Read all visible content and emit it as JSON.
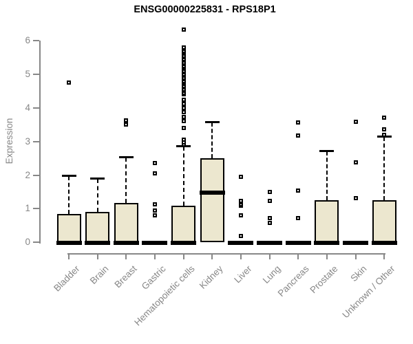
{
  "chart_data": {
    "type": "boxplot",
    "title": "ENSG00000225831 - RPS18P1",
    "ylabel": "Expression",
    "xlabel": "",
    "ylim": [
      0,
      6
    ],
    "yticks": [
      0,
      1,
      2,
      3,
      4,
      5,
      6
    ],
    "grid": false,
    "legend": "none",
    "box_fill": "#ece7cf",
    "box_border": "#000000",
    "median_color": "#000000",
    "axis_color": "#878787",
    "categories": [
      "Bladder",
      "Brain",
      "Breast",
      "Gastric",
      "Hematopoietic cells",
      "Kidney",
      "Liver",
      "Lung",
      "Pancreas",
      "Prostate",
      "Skin",
      "Unknown / Other"
    ],
    "series": [
      {
        "category": "Bladder",
        "q1": 0,
        "median": 0,
        "q3": 0.85,
        "whisker_low": 0,
        "whisker_high": 2.0,
        "outliers": [
          4.75
        ]
      },
      {
        "category": "Brain",
        "q1": 0,
        "median": 0,
        "q3": 0.9,
        "whisker_low": 0,
        "whisker_high": 1.9,
        "outliers": []
      },
      {
        "category": "Breast",
        "q1": 0,
        "median": 0,
        "q3": 1.18,
        "whisker_low": 0,
        "whisker_high": 2.55,
        "outliers": [
          3.5,
          3.62
        ]
      },
      {
        "category": "Gastric",
        "q1": 0,
        "median": 0,
        "q3": 0,
        "whisker_low": 0,
        "whisker_high": 0,
        "outliers": [
          0.81,
          0.95,
          1.14,
          2.05,
          2.35
        ]
      },
      {
        "category": "Hematopoietic cells",
        "q1": 0,
        "median": 0,
        "q3": 1.1,
        "whisker_low": 0,
        "whisker_high": 2.87,
        "outliers": [
          2.92,
          2.98,
          3.05,
          3.4,
          3.6,
          3.73,
          3.87,
          4.0,
          4.12,
          4.24,
          4.4,
          4.45,
          4.5,
          4.55,
          4.6,
          4.65,
          4.7,
          4.75,
          4.8,
          4.85,
          4.9,
          4.95,
          5.0,
          5.05,
          5.1,
          5.15,
          5.2,
          5.25,
          5.3,
          5.35,
          5.4,
          5.45,
          5.5,
          5.55,
          5.6,
          5.65,
          5.7,
          5.75,
          5.8,
          6.33
        ]
      },
      {
        "category": "Kidney",
        "q1": 0,
        "median": 1.5,
        "q3": 2.5,
        "whisker_low": 0,
        "whisker_high": 3.58,
        "outliers": []
      },
      {
        "category": "Liver",
        "q1": 0,
        "median": 0,
        "q3": 0,
        "whisker_low": 0,
        "whisker_high": 0,
        "outliers": [
          0.18,
          0.8,
          1.1,
          1.14,
          1.19,
          1.24,
          1.95
        ]
      },
      {
        "category": "Lung",
        "q1": 0,
        "median": 0,
        "q3": 0,
        "whisker_low": 0,
        "whisker_high": 0,
        "outliers": [
          0.57,
          0.72,
          1.23,
          1.5
        ]
      },
      {
        "category": "Pancreas",
        "q1": 0,
        "median": 0,
        "q3": 0,
        "whisker_low": 0,
        "whisker_high": 0,
        "outliers": [
          0.72,
          1.55,
          3.18,
          3.56
        ]
      },
      {
        "category": "Prostate",
        "q1": 0,
        "median": 0,
        "q3": 1.25,
        "whisker_low": 0,
        "whisker_high": 2.72,
        "outliers": []
      },
      {
        "category": "Skin",
        "q1": 0,
        "median": 0,
        "q3": 0,
        "whisker_low": 0,
        "whisker_high": 0,
        "outliers": [
          1.31,
          2.37,
          3.59
        ]
      },
      {
        "category": "Unknown / Other",
        "q1": 0,
        "median": 0,
        "q3": 1.25,
        "whisker_low": 0,
        "whisker_high": 3.15,
        "outliers": [
          3.2,
          3.35,
          3.7
        ]
      }
    ]
  }
}
